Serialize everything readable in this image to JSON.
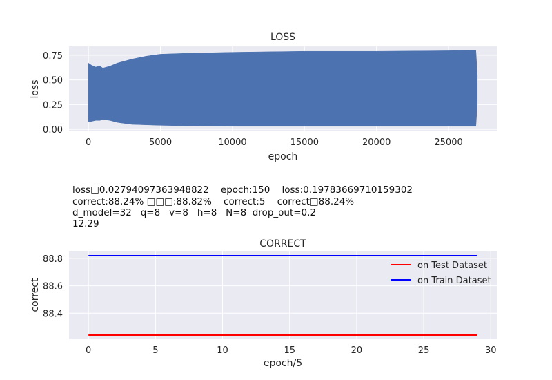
{
  "info_lines": [
    "loss□0.02794097363948822    epoch:150    loss:0.19783669710159302",
    "correct:88.24% □□□:88.82%    correct:5    correct□88.24%",
    "d_model=32   q=8   v=8   h=8   N=8  drop_out=0.2",
    "12.29"
  ],
  "chart_data": [
    {
      "type": "line",
      "title": "LOSS",
      "xlabel": "epoch",
      "ylabel": "loss",
      "xlim": [
        -1350,
        28350
      ],
      "ylim": [
        -0.02,
        0.84
      ],
      "xticks": [
        0,
        5000,
        10000,
        15000,
        20000,
        25000
      ],
      "xtick_labels": [
        "0",
        "5000",
        "10000",
        "15000",
        "20000",
        "25000"
      ],
      "yticks": [
        0.0,
        0.25,
        0.5,
        0.75
      ],
      "ytick_labels": [
        "0.00",
        "0.25",
        "0.50",
        "0.75"
      ],
      "grid": true,
      "series": [
        {
          "color": "#4c72b0",
          "description": "rapidly oscillating loss forming a filled band",
          "x": [
            0,
            200,
            500,
            800,
            1000,
            1500,
            2000,
            3000,
            4000,
            5000,
            7000,
            10000,
            15000,
            20000,
            25000,
            26900,
            27000
          ],
          "upper": [
            0.67,
            0.65,
            0.63,
            0.64,
            0.62,
            0.64,
            0.67,
            0.71,
            0.74,
            0.76,
            0.77,
            0.78,
            0.79,
            0.79,
            0.795,
            0.8,
            0.55
          ],
          "lower": [
            0.08,
            0.08,
            0.09,
            0.09,
            0.1,
            0.09,
            0.07,
            0.05,
            0.045,
            0.04,
            0.035,
            0.03,
            0.03,
            0.03,
            0.03,
            0.03,
            0.25
          ]
        }
      ]
    },
    {
      "type": "line",
      "title": "CORRECT",
      "xlabel": "epoch/5",
      "ylabel": "correct",
      "xlim": [
        -1.45,
        30.45
      ],
      "ylim": [
        88.21,
        88.85
      ],
      "xticks": [
        0,
        5,
        10,
        15,
        20,
        25,
        30
      ],
      "xtick_labels": [
        "0",
        "5",
        "10",
        "15",
        "20",
        "25",
        "30"
      ],
      "yticks": [
        88.4,
        88.6,
        88.8
      ],
      "ytick_labels": [
        "88.4",
        "88.6",
        "88.8"
      ],
      "grid": true,
      "legend": "upper right",
      "series": [
        {
          "name": "on Test Dataset",
          "color": "#ff0000",
          "x": [
            0,
            29
          ],
          "values": [
            88.24,
            88.24
          ]
        },
        {
          "name": "on Train Dataset",
          "color": "#0000ff",
          "x": [
            0,
            29
          ],
          "values": [
            88.82,
            88.82
          ]
        }
      ]
    }
  ]
}
